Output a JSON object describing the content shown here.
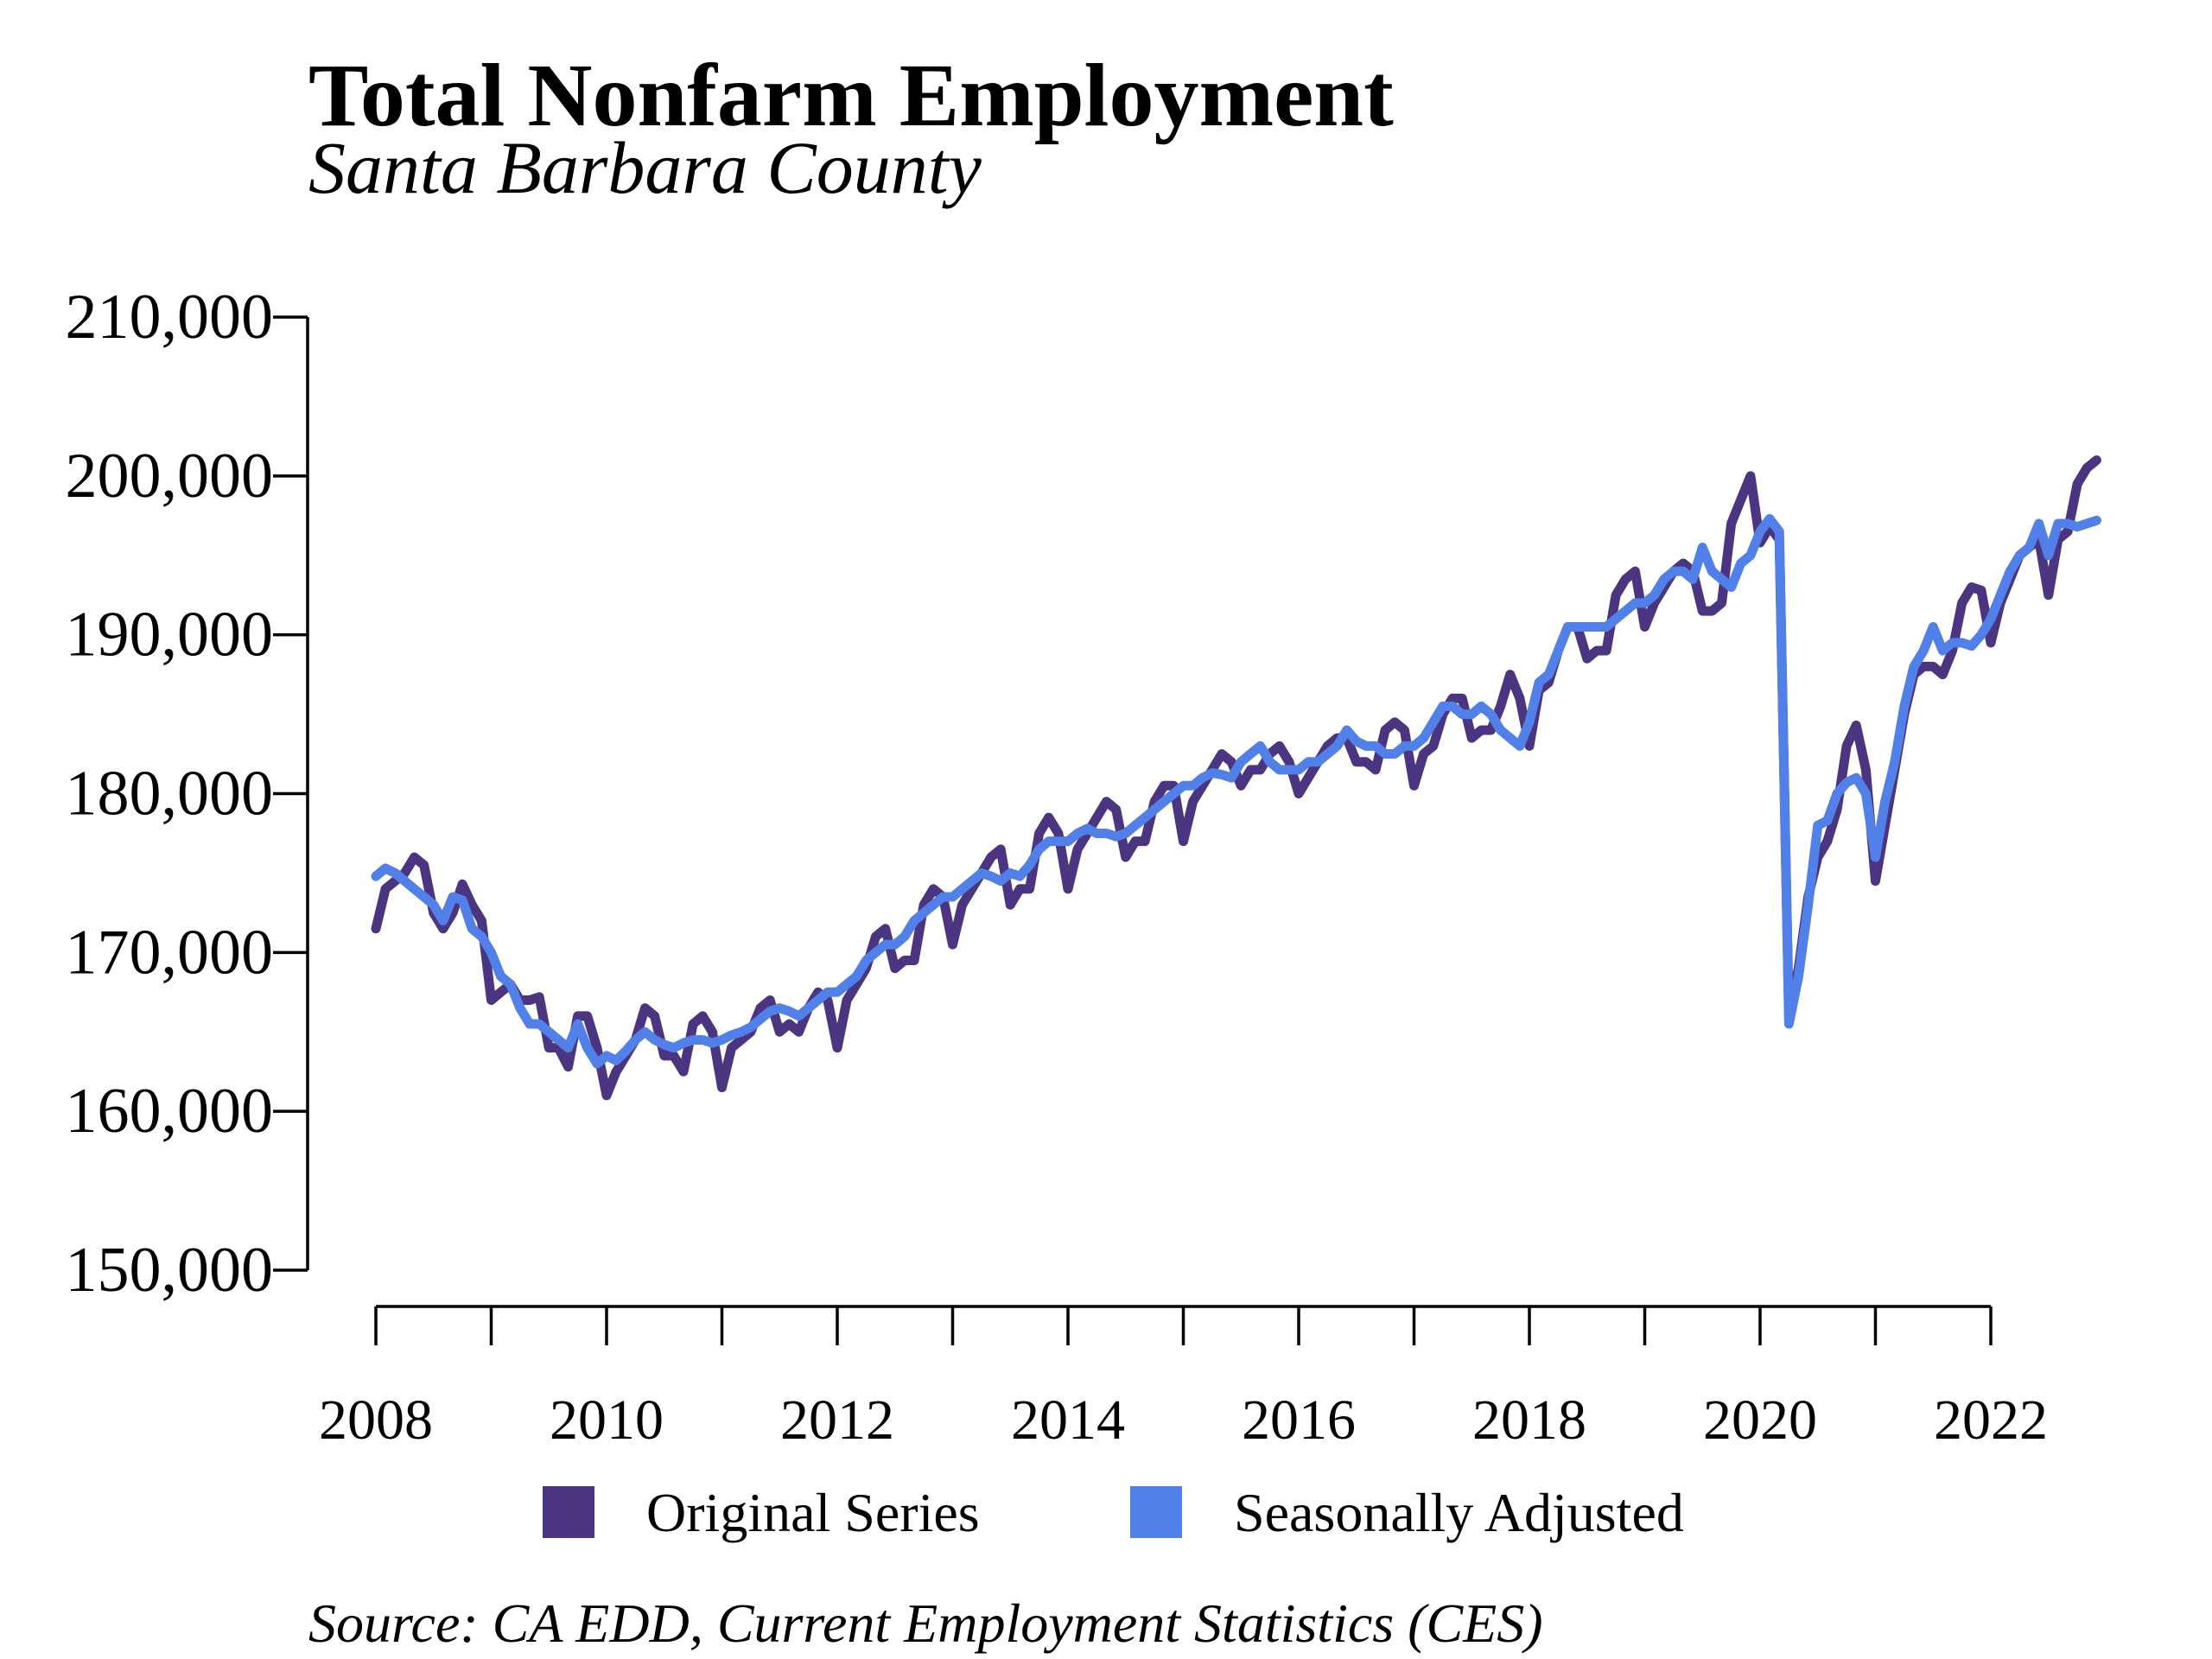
{
  "chart_data": {
    "type": "line",
    "title": "Total Nonfarm Employment",
    "subtitle": "Santa Barbara County",
    "source": "Source: CA EDD, Current Employment Statistics (CES)",
    "x": [
      2008,
      2008.083,
      2008.167,
      2008.25,
      2008.333,
      2008.417,
      2008.5,
      2008.583,
      2008.667,
      2008.75,
      2008.833,
      2008.917,
      2009,
      2009.083,
      2009.167,
      2009.25,
      2009.333,
      2009.417,
      2009.5,
      2009.583,
      2009.667,
      2009.75,
      2009.833,
      2009.917,
      2010,
      2010.083,
      2010.167,
      2010.25,
      2010.333,
      2010.417,
      2010.5,
      2010.583,
      2010.667,
      2010.75,
      2010.833,
      2010.917,
      2011,
      2011.083,
      2011.167,
      2011.25,
      2011.333,
      2011.417,
      2011.5,
      2011.583,
      2011.667,
      2011.75,
      2011.833,
      2011.917,
      2012,
      2012.083,
      2012.167,
      2012.25,
      2012.333,
      2012.417,
      2012.5,
      2012.583,
      2012.667,
      2012.75,
      2012.833,
      2012.917,
      2013,
      2013.083,
      2013.167,
      2013.25,
      2013.333,
      2013.417,
      2013.5,
      2013.583,
      2013.667,
      2013.75,
      2013.833,
      2013.917,
      2014,
      2014.083,
      2014.167,
      2014.25,
      2014.333,
      2014.417,
      2014.5,
      2014.583,
      2014.667,
      2014.75,
      2014.833,
      2014.917,
      2015,
      2015.083,
      2015.167,
      2015.25,
      2015.333,
      2015.417,
      2015.5,
      2015.583,
      2015.667,
      2015.75,
      2015.833,
      2015.917,
      2016,
      2016.083,
      2016.167,
      2016.25,
      2016.333,
      2016.417,
      2016.5,
      2016.583,
      2016.667,
      2016.75,
      2016.833,
      2016.917,
      2017,
      2017.083,
      2017.167,
      2017.25,
      2017.333,
      2017.417,
      2017.5,
      2017.583,
      2017.667,
      2017.75,
      2017.833,
      2017.917,
      2018,
      2018.083,
      2018.167,
      2018.25,
      2018.333,
      2018.417,
      2018.5,
      2018.583,
      2018.667,
      2018.75,
      2018.833,
      2018.917,
      2019,
      2019.083,
      2019.167,
      2019.25,
      2019.333,
      2019.417,
      2019.5,
      2019.583,
      2019.667,
      2019.75,
      2019.833,
      2019.917,
      2020,
      2020.083,
      2020.167,
      2020.25,
      2020.333,
      2020.417,
      2020.5,
      2020.583,
      2020.667,
      2020.75,
      2020.833,
      2020.917,
      2021,
      2021.083,
      2021.167,
      2021.25,
      2021.333,
      2021.417,
      2021.5,
      2021.583,
      2021.667,
      2021.75,
      2021.833,
      2021.917,
      2022,
      2022.083,
      2022.167,
      2022.25,
      2022.333,
      2022.417,
      2022.5,
      2022.583,
      2022.667,
      2022.75,
      2022.833,
      2022.917
    ],
    "series": [
      {
        "name": "Original Series",
        "color": "#4b3580",
        "values": [
          171500,
          174000,
          174500,
          175000,
          176000,
          175500,
          172500,
          171500,
          172500,
          174300,
          173000,
          172000,
          167000,
          167500,
          168000,
          167000,
          167000,
          167200,
          164000,
          164000,
          162800,
          166000,
          166000,
          164000,
          161000,
          162500,
          163500,
          164500,
          166500,
          166000,
          163500,
          163500,
          162500,
          165500,
          166000,
          165000,
          161500,
          164000,
          164500,
          165000,
          166500,
          167000,
          165000,
          165500,
          165000,
          166500,
          167500,
          167000,
          164000,
          167000,
          168000,
          169000,
          171000,
          171500,
          169000,
          169500,
          169500,
          173000,
          174000,
          173500,
          170500,
          173000,
          174000,
          175000,
          176000,
          176500,
          173000,
          174000,
          174000,
          177500,
          178500,
          177500,
          174000,
          176500,
          177500,
          178500,
          179500,
          179000,
          176000,
          177000,
          177000,
          179500,
          180500,
          180500,
          177000,
          179500,
          180500,
          181500,
          182500,
          182000,
          180500,
          181500,
          181500,
          182500,
          183000,
          182000,
          180000,
          181000,
          182000,
          183000,
          183500,
          183500,
          182000,
          182000,
          181500,
          184000,
          184500,
          184000,
          180500,
          182500,
          183000,
          185000,
          186000,
          186000,
          183500,
          184000,
          184000,
          185500,
          187500,
          186000,
          183000,
          186500,
          187000,
          189000,
          190500,
          190500,
          188500,
          189000,
          189000,
          192500,
          193500,
          194000,
          190500,
          192000,
          193000,
          194000,
          194500,
          194000,
          191500,
          191500,
          192000,
          197000,
          198500,
          200000,
          195800,
          196800,
          196000,
          166000,
          169000,
          173500,
          176000,
          177000,
          179000,
          183000,
          184300,
          181500,
          174500,
          178000,
          181500,
          185000,
          187500,
          188000,
          188000,
          187500,
          189000,
          192000,
          193000,
          192800,
          189500,
          192000,
          193500,
          195000,
          195500,
          196000,
          192500,
          196000,
          196500,
          199500,
          200500,
          201000
        ]
      },
      {
        "name": "Seasonally Adjusted",
        "color": "#5080e8",
        "values": [
          174800,
          175300,
          175000,
          174500,
          174000,
          173500,
          173000,
          172000,
          173500,
          173300,
          171500,
          171000,
          170000,
          168500,
          168000,
          166500,
          165500,
          165500,
          165000,
          164500,
          164000,
          165500,
          164000,
          163000,
          163500,
          163200,
          163800,
          164500,
          165000,
          164500,
          164200,
          164000,
          164300,
          164500,
          164500,
          164300,
          164500,
          164800,
          165000,
          165300,
          165800,
          166300,
          166500,
          166300,
          166000,
          166500,
          167000,
          167500,
          167500,
          168000,
          168500,
          169500,
          170000,
          170500,
          170500,
          171000,
          172000,
          172500,
          173000,
          173500,
          173500,
          174000,
          174500,
          175000,
          174800,
          174500,
          175000,
          174800,
          175500,
          176500,
          177000,
          177000,
          177000,
          177500,
          177800,
          177500,
          177500,
          177300,
          177500,
          178000,
          178500,
          179000,
          179500,
          180000,
          180500,
          180500,
          181000,
          181300,
          181200,
          181000,
          182000,
          182500,
          183000,
          182000,
          181500,
          181500,
          181500,
          182000,
          182000,
          182500,
          183000,
          184000,
          183300,
          183000,
          183000,
          182500,
          182500,
          183000,
          183000,
          183500,
          184500,
          185500,
          185500,
          185000,
          185000,
          185500,
          185000,
          184000,
          183500,
          183000,
          184500,
          187000,
          187500,
          189000,
          190500,
          190500,
          190500,
          190500,
          190500,
          191000,
          191500,
          192000,
          192000,
          192500,
          193500,
          194000,
          194000,
          193500,
          195500,
          194000,
          193500,
          193000,
          194500,
          195000,
          196500,
          197300,
          196500,
          165500,
          168500,
          173000,
          178000,
          178300,
          180000,
          180700,
          181000,
          180000,
          176000,
          179500,
          182000,
          185500,
          188000,
          189000,
          190500,
          189000,
          189500,
          189500,
          189300,
          190000,
          191000,
          192500,
          194000,
          195000,
          195500,
          197000,
          195000,
          197000,
          197000,
          196800,
          197000,
          197200
        ]
      }
    ],
    "xlim": [
      2008,
      2022
    ],
    "xticks": [
      2008,
      2010,
      2012,
      2014,
      2016,
      2018,
      2020,
      2022
    ],
    "xminor_ticks": [
      2009,
      2011,
      2013,
      2015,
      2017,
      2019,
      2021
    ],
    "ylim": [
      150000,
      210000
    ],
    "yticks": [
      {
        "value": 150000,
        "label": "150,000"
      },
      {
        "value": 160000,
        "label": "160,000"
      },
      {
        "value": 170000,
        "label": "170,000"
      },
      {
        "value": 180000,
        "label": "180,000"
      },
      {
        "value": 190000,
        "label": "190,000"
      },
      {
        "value": 200000,
        "label": "200,000"
      },
      {
        "value": 210000,
        "label": "210,000"
      }
    ],
    "grid": false,
    "legend": "bottom"
  }
}
